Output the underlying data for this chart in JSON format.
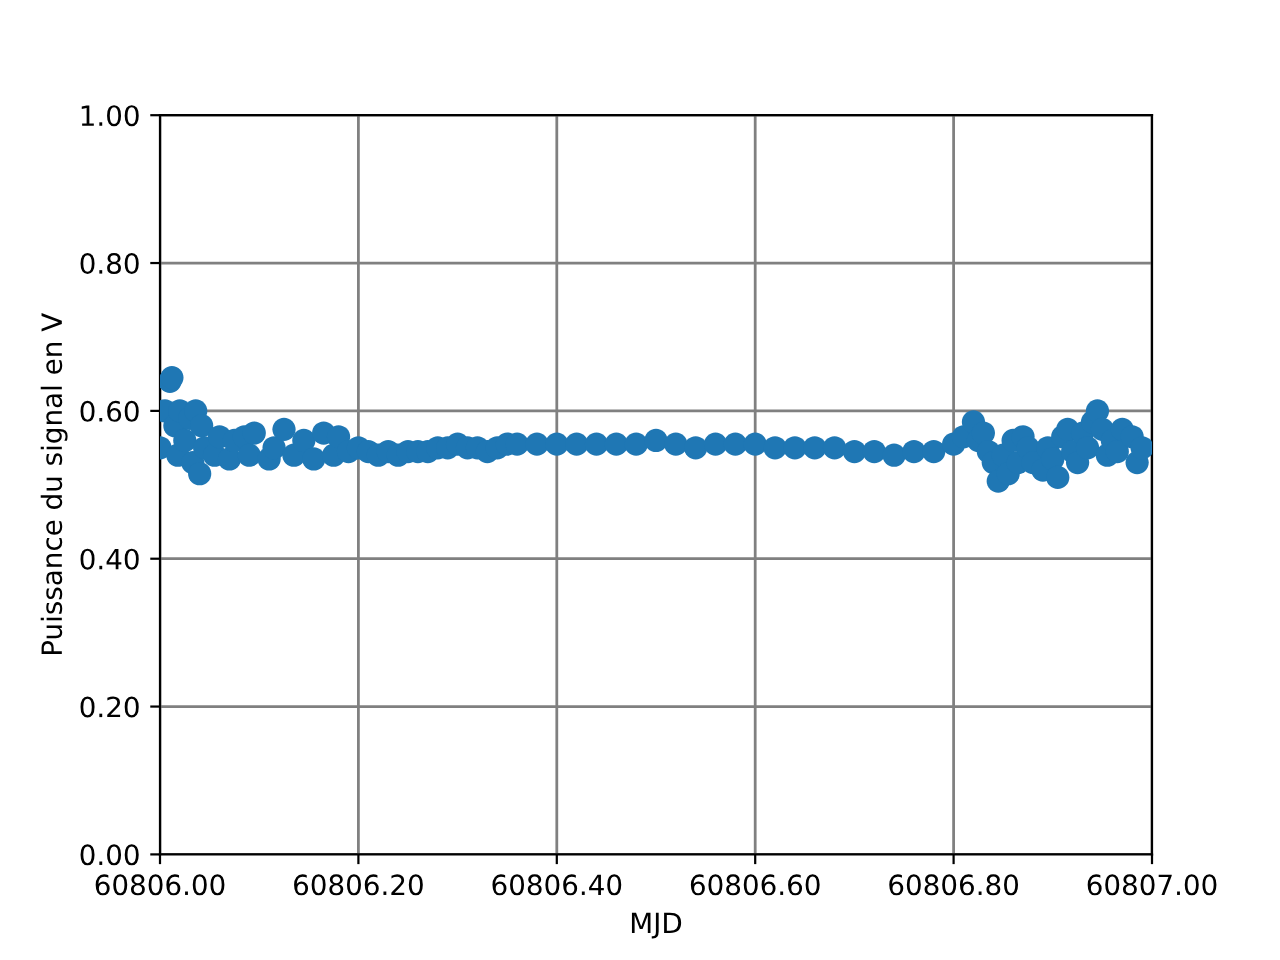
{
  "chart_data": {
    "type": "scatter",
    "xlabel": "MJD",
    "ylabel": "Puissance du signal en V",
    "x": [
      60806.0,
      60806.005,
      60806.01,
      60806.012,
      60806.015,
      60806.018,
      60806.02,
      60806.025,
      60806.03,
      60806.033,
      60806.036,
      60806.04,
      60806.042,
      60806.045,
      60806.055,
      60806.06,
      60806.07,
      60806.075,
      60806.085,
      60806.09,
      60806.095,
      60806.11,
      60806.115,
      60806.125,
      60806.135,
      60806.145,
      60806.155,
      60806.165,
      60806.175,
      60806.18,
      60806.19,
      60806.2,
      60806.21,
      60806.22,
      60806.23,
      60806.24,
      60806.25,
      60806.26,
      60806.27,
      60806.28,
      60806.29,
      60806.3,
      60806.31,
      60806.32,
      60806.33,
      60806.34,
      60806.35,
      60806.36,
      60806.38,
      60806.4,
      60806.42,
      60806.44,
      60806.46,
      60806.48,
      60806.5,
      60806.52,
      60806.54,
      60806.56,
      60806.58,
      60806.6,
      60806.62,
      60806.64,
      60806.66,
      60806.68,
      60806.7,
      60806.72,
      60806.74,
      60806.76,
      60806.78,
      60806.8,
      60806.81,
      60806.82,
      60806.825,
      60806.83,
      60806.835,
      60806.84,
      60806.845,
      60806.85,
      60806.855,
      60806.86,
      60806.865,
      60806.87,
      60806.875,
      60806.88,
      60806.89,
      60806.895,
      60806.9,
      60806.905,
      60806.91,
      60806.915,
      60806.92,
      60806.925,
      60806.93,
      60806.935,
      60806.94,
      60806.945,
      60806.95,
      60806.955,
      60806.96,
      60806.965,
      60806.97,
      60806.98,
      60806.985,
      60806.99
    ],
    "values": [
      0.55,
      0.6,
      0.64,
      0.645,
      0.58,
      0.54,
      0.6,
      0.56,
      0.59,
      0.53,
      0.6,
      0.515,
      0.58,
      0.55,
      0.54,
      0.565,
      0.535,
      0.56,
      0.565,
      0.54,
      0.57,
      0.535,
      0.55,
      0.575,
      0.54,
      0.56,
      0.535,
      0.57,
      0.54,
      0.565,
      0.545,
      0.55,
      0.545,
      0.54,
      0.545,
      0.54,
      0.545,
      0.545,
      0.545,
      0.55,
      0.55,
      0.555,
      0.55,
      0.55,
      0.545,
      0.55,
      0.555,
      0.555,
      0.555,
      0.555,
      0.555,
      0.555,
      0.555,
      0.555,
      0.56,
      0.555,
      0.55,
      0.555,
      0.555,
      0.555,
      0.55,
      0.55,
      0.55,
      0.55,
      0.545,
      0.545,
      0.54,
      0.545,
      0.545,
      0.555,
      0.565,
      0.585,
      0.56,
      0.57,
      0.545,
      0.53,
      0.505,
      0.54,
      0.515,
      0.56,
      0.53,
      0.565,
      0.55,
      0.53,
      0.52,
      0.55,
      0.535,
      0.51,
      0.565,
      0.575,
      0.545,
      0.53,
      0.57,
      0.55,
      0.585,
      0.6,
      0.575,
      0.54,
      0.56,
      0.545,
      0.575,
      0.565,
      0.53,
      0.55
    ],
    "color": "#1f77b4",
    "marker": "circle",
    "grid": true,
    "xlim": [
      60806.0,
      60807.0
    ],
    "ylim": [
      0.0,
      1.0
    ],
    "xticks": [
      {
        "value": 60806.0,
        "label": "60806.00"
      },
      {
        "value": 60806.2,
        "label": "60806.20"
      },
      {
        "value": 60806.4,
        "label": "60806.40"
      },
      {
        "value": 60806.6,
        "label": "60806.60"
      },
      {
        "value": 60806.8,
        "label": "60806.80"
      },
      {
        "value": 60807.0,
        "label": "60807.00"
      }
    ],
    "yticks": [
      {
        "value": 0.0,
        "label": "0.00"
      },
      {
        "value": 0.2,
        "label": "0.20"
      },
      {
        "value": 0.4,
        "label": "0.40"
      },
      {
        "value": 0.6,
        "label": "0.60"
      },
      {
        "value": 0.8,
        "label": "0.80"
      },
      {
        "value": 1.0,
        "label": "1.00"
      }
    ]
  }
}
